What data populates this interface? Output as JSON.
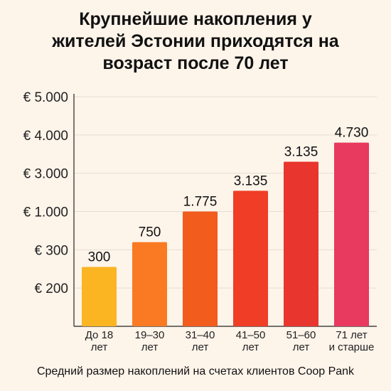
{
  "title_lines": [
    "Крупнейшие накопления у",
    "жителей Эстонии приходятся на",
    "возраст после 70 лет"
  ],
  "caption": "Средний размер накоплений на счетах клиентов Coop Pank",
  "colors": {
    "background": "#fdf4ea",
    "bars": [
      "#fbb523",
      "#f97a22",
      "#f25c1d",
      "#ef3d26",
      "#e8352e",
      "#e8395e"
    ],
    "axis": "#222222",
    "grid": "#e7ddd2"
  },
  "chart_data": {
    "type": "bar",
    "title": "Крупнейшие накопления у жителей Эстонии приходятся на возраст после 70 лет",
    "categories": [
      [
        "До 18",
        "лет"
      ],
      [
        "19–30",
        "лет"
      ],
      [
        "31–40",
        "лет"
      ],
      [
        "41–50",
        "лет"
      ],
      [
        "51–60",
        "лет"
      ],
      [
        "71 лет",
        "и старше"
      ]
    ],
    "values": [
      300,
      750,
      1775,
      3135,
      3135,
      4730
    ],
    "value_labels": [
      "300",
      "750",
      "1.775",
      "3.135",
      "3.135",
      "4.730"
    ],
    "y_ticks": [
      "€ 200",
      "€ 300",
      "€ 1.000",
      "€ 3.000",
      "€ 4.000",
      "€ 5.000"
    ],
    "y_tick_values": [
      200,
      300,
      1000,
      3000,
      4000,
      5000
    ],
    "bar_levels": [
      1.55,
      2.2,
      3.0,
      3.54,
      4.3,
      4.8
    ],
    "ylabel": "",
    "xlabel": "",
    "grid": true,
    "legend": "none"
  }
}
